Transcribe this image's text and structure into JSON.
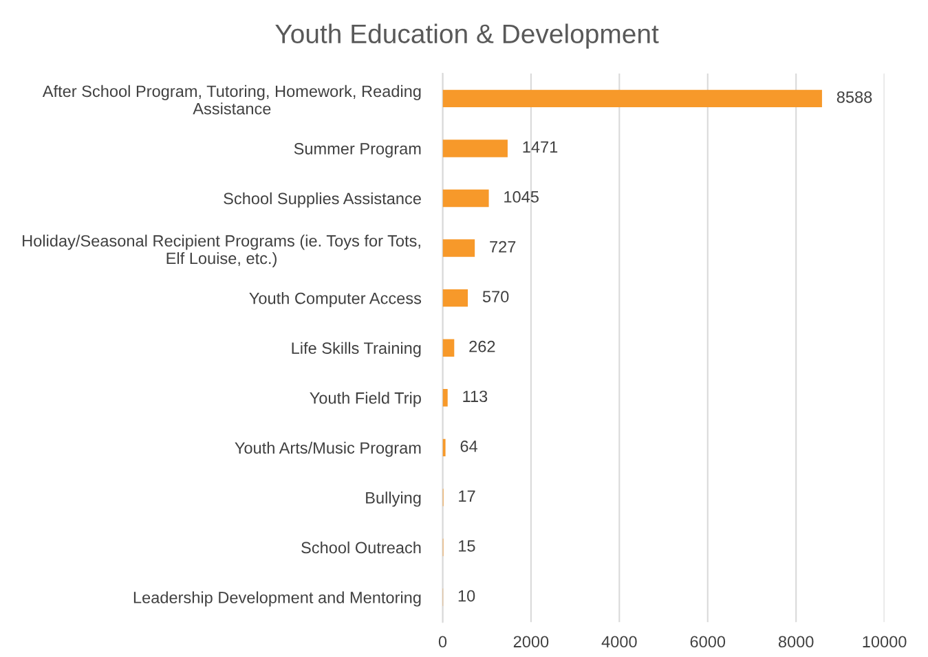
{
  "chart_data": {
    "type": "bar",
    "orientation": "horizontal",
    "title": "Youth Education & Development",
    "categories": [
      "After School Program, Tutoring, Homework, Reading Assistance",
      "Summer Program",
      "School Supplies Assistance",
      "Holiday/Seasonal Recipient Programs (ie. Toys for Tots, Elf Louise, etc.)",
      "Youth Computer Access",
      "Life Skills Training",
      "Youth Field Trip",
      "Youth Arts/Music Program",
      "Bullying",
      "School Outreach",
      "Leadership Development and Mentoring"
    ],
    "values": [
      8588,
      1471,
      1045,
      727,
      570,
      262,
      113,
      64,
      17,
      15,
      10
    ],
    "color": "#f7992a",
    "xlim": [
      0,
      10000
    ],
    "xticks": [
      0,
      2000,
      4000,
      6000,
      8000,
      10000
    ],
    "grid": "x",
    "data_labels": true
  }
}
